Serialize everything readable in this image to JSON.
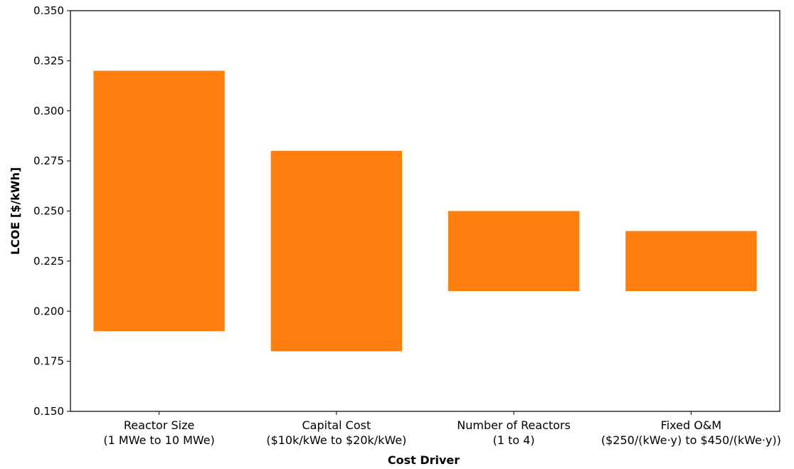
{
  "chart_data": {
    "type": "bar",
    "subtype": "floating-range",
    "title": "",
    "xlabel": "Cost Driver",
    "ylabel": "LCOE [$/kWh]",
    "ylim": [
      0.15,
      0.35
    ],
    "yticks": [
      "0.150",
      "0.175",
      "0.200",
      "0.225",
      "0.250",
      "0.275",
      "0.300",
      "0.325",
      "0.350"
    ],
    "grid": false,
    "bar_color": "#ff7f0e",
    "categories": [
      {
        "name": "Reactor Size",
        "range": "(1 MWe to 10 MWe)",
        "low": 0.19,
        "high": 0.32
      },
      {
        "name": "Capital Cost",
        "range": "($10k/kWe to $20k/kWe)",
        "low": 0.18,
        "high": 0.28
      },
      {
        "name": "Number of Reactors",
        "range": "(1 to 4)",
        "low": 0.21,
        "high": 0.25
      },
      {
        "name": "Fixed O&M",
        "range": "($250/(kWe·y) to $450/(kWe·y))",
        "low": 0.21,
        "high": 0.24
      }
    ]
  }
}
